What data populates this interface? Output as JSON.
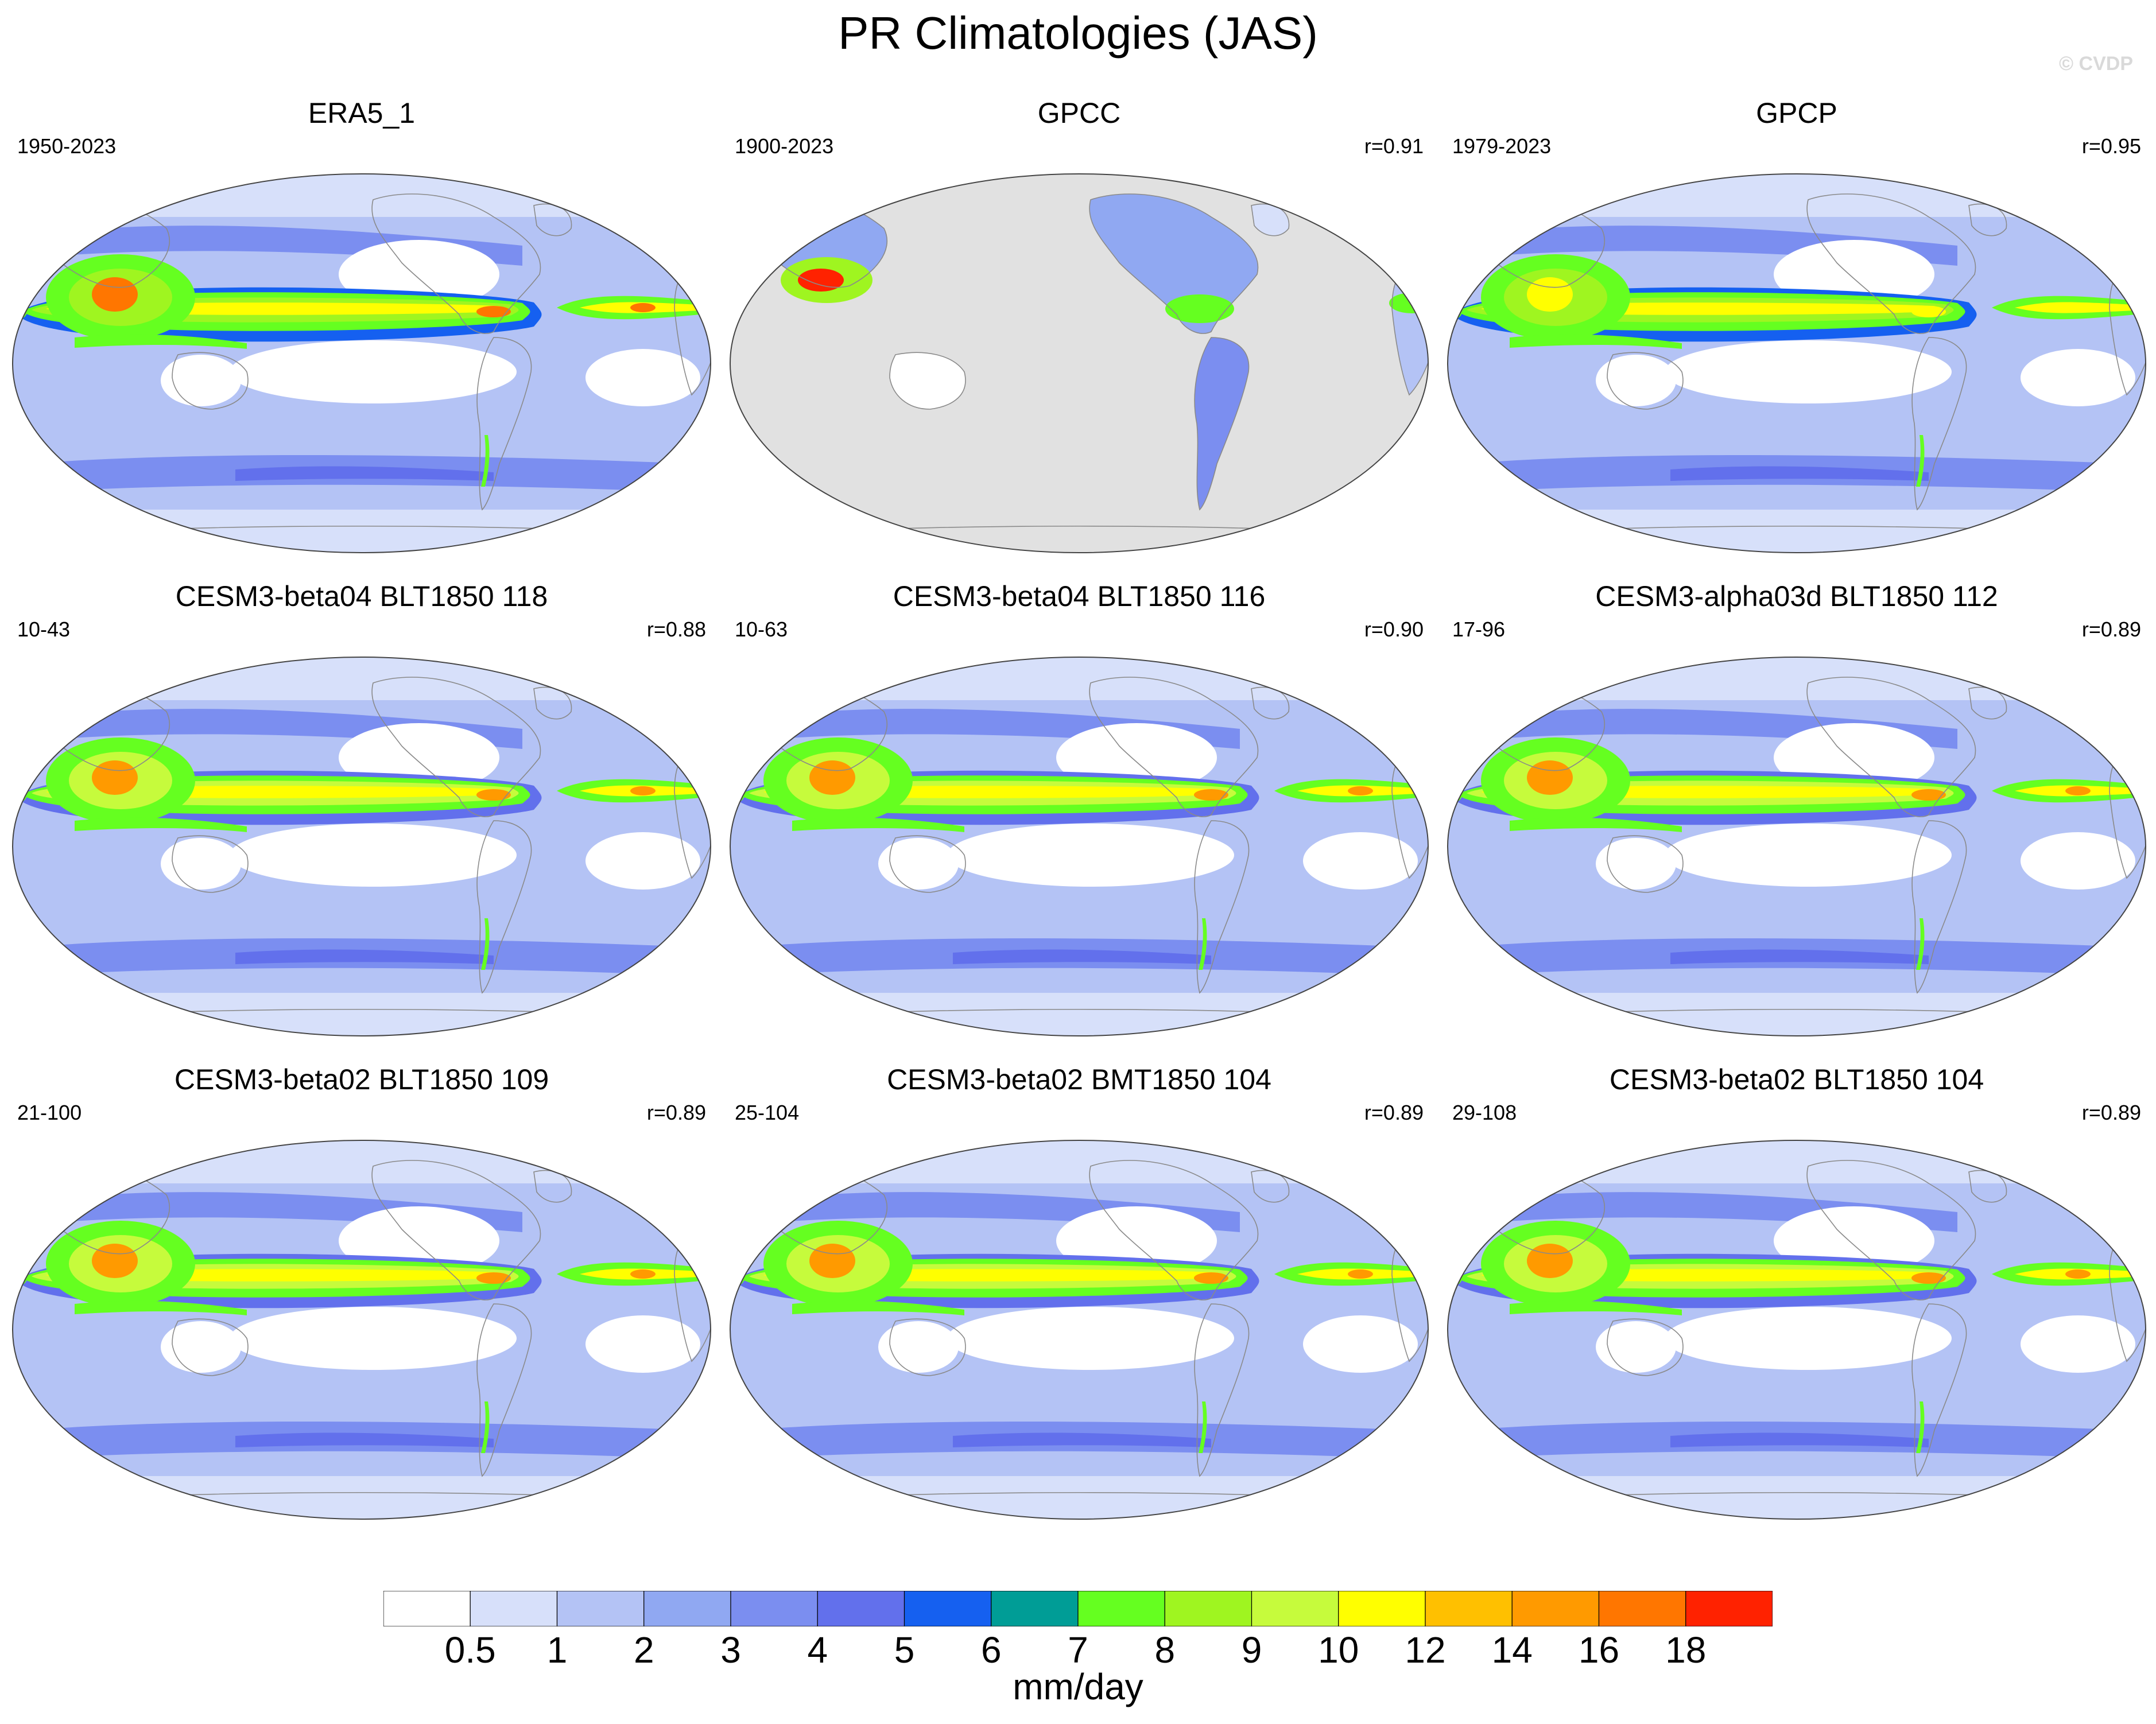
{
  "figure": {
    "title": "PR Climatologies (JAS)",
    "watermark": "© CVDP",
    "units": "mm/day"
  },
  "colorbar": {
    "colors": [
      "#ffffff",
      "#d7e0fa",
      "#b4c3f5",
      "#90a8f2",
      "#7b8ef0",
      "#6270ec",
      "#1560f0",
      "#009d96",
      "#65ff20",
      "#9ff520",
      "#c6fb3c",
      "#ffff00",
      "#ffc000",
      "#ff9a00",
      "#ff7600",
      "#ff2200"
    ],
    "tick_labels": [
      "0.5",
      "1",
      "2",
      "3",
      "4",
      "5",
      "6",
      "7",
      "8",
      "9",
      "10",
      "12",
      "14",
      "16",
      "18"
    ]
  },
  "panels": [
    {
      "title": "ERA5_1",
      "years": "1950-2023",
      "corr": "",
      "style": "obs_era"
    },
    {
      "title": "GPCC",
      "years": "1900-2023",
      "corr": "r=0.91",
      "style": "land_only"
    },
    {
      "title": "GPCP",
      "years": "1979-2023",
      "corr": "r=0.95",
      "style": "obs_smooth"
    },
    {
      "title": "CESM3-beta04 BLT1850 118",
      "years": "10-43",
      "corr": "r=0.88",
      "style": "model"
    },
    {
      "title": "CESM3-beta04 BLT1850 116",
      "years": "10-63",
      "corr": "r=0.90",
      "style": "model"
    },
    {
      "title": "CESM3-alpha03d BLT1850 112",
      "years": "17-96",
      "corr": "r=0.89",
      "style": "model"
    },
    {
      "title": "CESM3-beta02 BLT1850 109",
      "years": "21-100",
      "corr": "r=0.89",
      "style": "model"
    },
    {
      "title": "CESM3-beta02 BMT1850 104",
      "years": "25-104",
      "corr": "r=0.89",
      "style": "model"
    },
    {
      "title": "CESM3-beta02 BLT1850 104",
      "years": "29-108",
      "corr": "r=0.89",
      "style": "model"
    }
  ]
}
